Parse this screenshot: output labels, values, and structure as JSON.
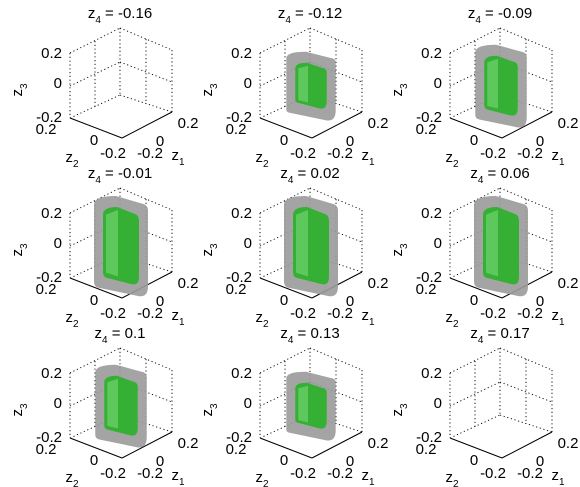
{
  "figure": {
    "panel_titles": [
      {
        "var": "z",
        "sub": "4",
        "value": " = -0.16"
      },
      {
        "var": "z",
        "sub": "4",
        "value": " = -0.12"
      },
      {
        "var": "z",
        "sub": "4",
        "value": " = -0.09"
      },
      {
        "var": "z",
        "sub": "4",
        "value": " = -0.01"
      },
      {
        "var": "z",
        "sub": "4",
        "value": " = 0.02"
      },
      {
        "var": "z",
        "sub": "4",
        "value": " = 0.06"
      },
      {
        "var": "z",
        "sub": "4",
        "value": " = 0.1"
      },
      {
        "var": "z",
        "sub": "4",
        "value": " = 0.13"
      },
      {
        "var": "z",
        "sub": "4",
        "value": " = 0.17"
      }
    ],
    "axes": {
      "z3": {
        "var": "z",
        "sub": "3",
        "ticks": [
          "0.2",
          "0",
          "-0.2"
        ]
      },
      "z2": {
        "var": "z",
        "sub": "2",
        "ticks": [
          "0.2",
          "0",
          "-0.2"
        ]
      },
      "z1": {
        "var": "z",
        "sub": "1",
        "ticks": [
          "-0.2",
          "0",
          "0.2"
        ]
      }
    },
    "colors": {
      "outer_set": "#9a9a9a",
      "inner_set": "#35b035",
      "inner_highlight": "#8fe88f",
      "grid": "#000000"
    }
  },
  "chart_data": {
    "type": "3d-slices",
    "slice_variable": "z4",
    "slices": [
      {
        "z4": -0.16,
        "has_region": false,
        "size": 0
      },
      {
        "z4": -0.12,
        "has_region": true,
        "size": 0.55
      },
      {
        "z4": -0.09,
        "has_region": true,
        "size": 0.75
      },
      {
        "z4": -0.01,
        "has_region": true,
        "size": 1.0
      },
      {
        "z4": 0.02,
        "has_region": true,
        "size": 1.0
      },
      {
        "z4": 0.06,
        "has_region": true,
        "size": 1.0
      },
      {
        "z4": 0.1,
        "has_region": true,
        "size": 0.75
      },
      {
        "z4": 0.13,
        "has_region": true,
        "size": 0.55
      },
      {
        "z4": 0.17,
        "has_region": false,
        "size": 0
      }
    ],
    "axis_ranges": {
      "z1": [
        -0.2,
        0.2
      ],
      "z2": [
        -0.2,
        0.2
      ],
      "z3": [
        -0.2,
        0.2
      ]
    },
    "grid": true
  }
}
